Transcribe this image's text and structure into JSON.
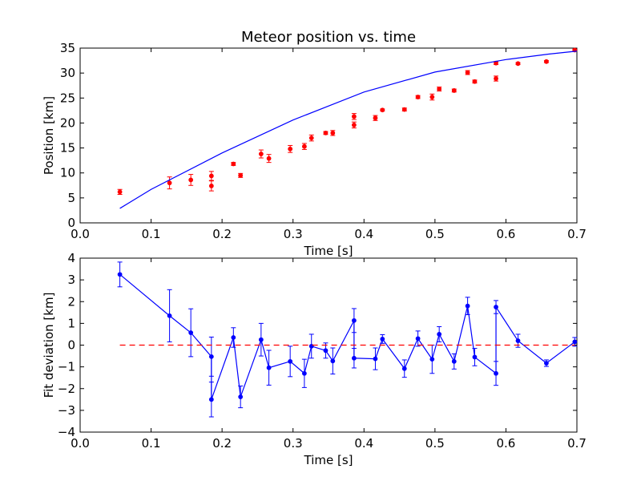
{
  "chart_data": [
    {
      "type": "scatter",
      "title": "Meteor position vs. time",
      "xlabel": "Time [s]",
      "ylabel": "Position [km]",
      "xlim": [
        0.0,
        0.7
      ],
      "ylim": [
        0,
        35
      ],
      "xticks": [
        "0.0",
        "0.1",
        "0.2",
        "0.3",
        "0.4",
        "0.5",
        "0.6",
        "0.7"
      ],
      "yticks": [
        "0",
        "5",
        "10",
        "15",
        "20",
        "25",
        "30",
        "35"
      ],
      "grid": false,
      "series": [
        {
          "kind": "errorbar-scatter",
          "color": "#ff0000",
          "x": [
            0.056,
            0.126,
            0.156,
            0.185,
            0.185,
            0.216,
            0.226,
            0.255,
            0.266,
            0.296,
            0.316,
            0.326,
            0.346,
            0.356,
            0.386,
            0.386,
            0.416,
            0.426,
            0.457,
            0.476,
            0.496,
            0.506,
            0.527,
            0.546,
            0.556,
            0.586,
            0.586,
            0.617,
            0.657,
            0.697
          ],
          "y": [
            6.2,
            8.0,
            8.6,
            9.4,
            7.4,
            11.8,
            9.5,
            13.8,
            12.9,
            14.8,
            15.3,
            17.0,
            18.0,
            18.0,
            21.3,
            19.6,
            21.0,
            22.6,
            22.7,
            25.2,
            25.2,
            26.8,
            26.5,
            30.1,
            28.3,
            32.0,
            28.9,
            31.9,
            32.3,
            34.6
          ],
          "yerr": [
            0.5,
            1.2,
            1.1,
            0.9,
            1.0,
            0.3,
            0.4,
            0.8,
            0.8,
            0.7,
            0.6,
            0.6,
            0.3,
            0.5,
            0.6,
            0.6,
            0.5,
            0.2,
            0.3,
            0.3,
            0.6,
            0.4,
            0.3,
            0.4,
            0.3,
            0.3,
            0.5,
            0.2,
            0.2,
            0.2
          ]
        },
        {
          "kind": "line",
          "color": "#0000ff",
          "x": [
            0.056,
            0.1,
            0.2,
            0.3,
            0.4,
            0.5,
            0.6,
            0.66,
            0.7
          ],
          "y": [
            2.9,
            6.7,
            14.0,
            20.6,
            26.2,
            30.2,
            32.7,
            33.8,
            34.4
          ]
        }
      ]
    },
    {
      "type": "line",
      "title": "",
      "xlabel": "Time [s]",
      "ylabel": "Fit deviation [km]",
      "xlim": [
        0.0,
        0.7
      ],
      "ylim": [
        -4,
        4
      ],
      "xticks": [
        "0.0",
        "0.1",
        "0.2",
        "0.3",
        "0.4",
        "0.5",
        "0.6",
        "0.7"
      ],
      "yticks": [
        "−4",
        "−3",
        "−2",
        "−1",
        "0",
        "1",
        "2",
        "3",
        "4"
      ],
      "grid": false,
      "series": [
        {
          "kind": "errorbar-line",
          "color": "#0000ff",
          "x": [
            0.056,
            0.126,
            0.156,
            0.185,
            0.185,
            0.216,
            0.226,
            0.255,
            0.266,
            0.296,
            0.316,
            0.326,
            0.346,
            0.356,
            0.386,
            0.386,
            0.416,
            0.426,
            0.457,
            0.476,
            0.496,
            0.506,
            0.527,
            0.546,
            0.556,
            0.586,
            0.586,
            0.617,
            0.657,
            0.697
          ],
          "y": [
            3.25,
            1.35,
            0.57,
            -0.53,
            -2.5,
            0.35,
            -2.38,
            0.25,
            -1.04,
            -0.75,
            -1.3,
            -0.05,
            -0.25,
            -0.73,
            1.13,
            -0.6,
            -0.63,
            0.28,
            -1.08,
            0.3,
            -0.65,
            0.5,
            -0.75,
            1.8,
            -0.55,
            -1.3,
            1.75,
            0.2,
            -0.83,
            0.15
          ],
          "yerr": [
            0.57,
            1.2,
            1.1,
            0.9,
            0.8,
            0.45,
            0.5,
            0.75,
            0.8,
            0.7,
            0.65,
            0.55,
            0.35,
            0.6,
            0.55,
            0.45,
            0.5,
            0.2,
            0.4,
            0.35,
            0.65,
            0.35,
            0.35,
            0.4,
            0.4,
            0.55,
            0.3,
            0.3,
            0.15,
            0.2
          ]
        },
        {
          "kind": "reference-line",
          "color": "#ff0000",
          "style": "dashed",
          "x": [
            0.056,
            0.697
          ],
          "y": [
            0,
            0
          ]
        }
      ]
    }
  ]
}
